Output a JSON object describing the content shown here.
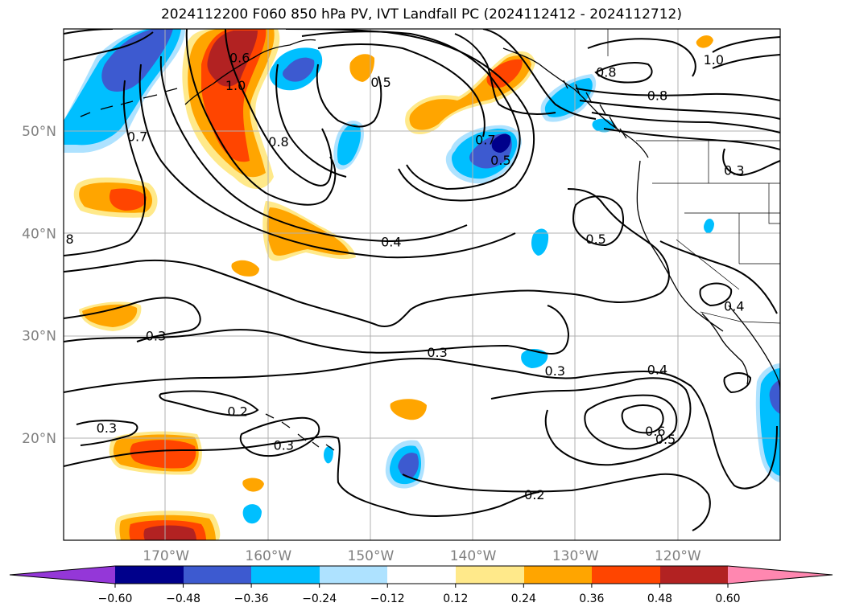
{
  "title": "2024112200 F060 850 hPa PV, IVT Landfall PC (2024112412 - 2024112712)",
  "map": {
    "lon_range": [
      -180,
      -110
    ],
    "lat_range": [
      10,
      60
    ],
    "lat_ticks": [
      {
        "value": 50,
        "label": "50°N"
      },
      {
        "value": 40,
        "label": "40°N"
      },
      {
        "value": 30,
        "label": "30°N"
      },
      {
        "value": 20,
        "label": "20°N"
      }
    ],
    "lon_ticks": [
      {
        "value": -170,
        "label": "170°W"
      },
      {
        "value": -160,
        "label": "160°W"
      },
      {
        "value": -150,
        "label": "150°W"
      },
      {
        "value": -140,
        "label": "140°W"
      },
      {
        "value": -130,
        "label": "130°W"
      },
      {
        "value": -120,
        "label": "120°W"
      }
    ],
    "grid": true,
    "colors": {
      "neg_060": "#9437d8",
      "neg_048": "#00008b",
      "neg_036": "#3d5ad0",
      "neg_024": "#00bfff",
      "neg_012": "#aee2ff",
      "zero": "#ffffff",
      "pos_012": "#ffe98a",
      "pos_024": "#ffa500",
      "pos_036": "#ff4500",
      "pos_048": "#b22222",
      "pos_060": "#ff87b0"
    }
  },
  "contour_labels": [
    {
      "text": "0.6",
      "lon": -162.8,
      "lat": 57.2
    },
    {
      "text": "1.0",
      "lon": -163.2,
      "lat": 54.5
    },
    {
      "text": "0.7",
      "lon": -172.8,
      "lat": 49.5
    },
    {
      "text": "0.8",
      "lon": -159.0,
      "lat": 49.0
    },
    {
      "text": "0.5",
      "lon": -149.0,
      "lat": 54.8
    },
    {
      "text": "0.7",
      "lon": -138.8,
      "lat": 49.2
    },
    {
      "text": "0.5",
      "lon": -137.3,
      "lat": 47.2
    },
    {
      "text": "0.8",
      "lon": -127.0,
      "lat": 55.8
    },
    {
      "text": "0.8",
      "lon": -122.0,
      "lat": 53.5
    },
    {
      "text": "1.0",
      "lon": -116.5,
      "lat": 57.0
    },
    {
      "text": "0.3",
      "lon": -114.5,
      "lat": 46.2
    },
    {
      "text": "8",
      "lon": -179.4,
      "lat": 39.5
    },
    {
      "text": "0.4",
      "lon": -148.0,
      "lat": 39.2
    },
    {
      "text": "0.5",
      "lon": -128.0,
      "lat": 39.5
    },
    {
      "text": "0.3",
      "lon": -171.0,
      "lat": 30.0
    },
    {
      "text": "0.3",
      "lon": -143.5,
      "lat": 28.4
    },
    {
      "text": "0.3",
      "lon": -132.0,
      "lat": 26.6
    },
    {
      "text": "0.4",
      "lon": -122.0,
      "lat": 26.7
    },
    {
      "text": "0.4",
      "lon": -114.5,
      "lat": 32.9
    },
    {
      "text": "0.2",
      "lon": -163.0,
      "lat": 22.6
    },
    {
      "text": "0.3",
      "lon": -175.8,
      "lat": 21.0
    },
    {
      "text": "0.3",
      "lon": -158.5,
      "lat": 19.3
    },
    {
      "text": "0.6",
      "lon": -122.2,
      "lat": 20.7
    },
    {
      "text": "0.5",
      "lon": -121.2,
      "lat": 19.9
    },
    {
      "text": "0.2",
      "lon": -134.0,
      "lat": 14.5
    }
  ],
  "colorbar": {
    "ticks": [
      "−0.60",
      "−0.48",
      "−0.36",
      "−0.24",
      "−0.12",
      "0.12",
      "0.24",
      "0.36",
      "0.48",
      "0.60"
    ]
  }
}
